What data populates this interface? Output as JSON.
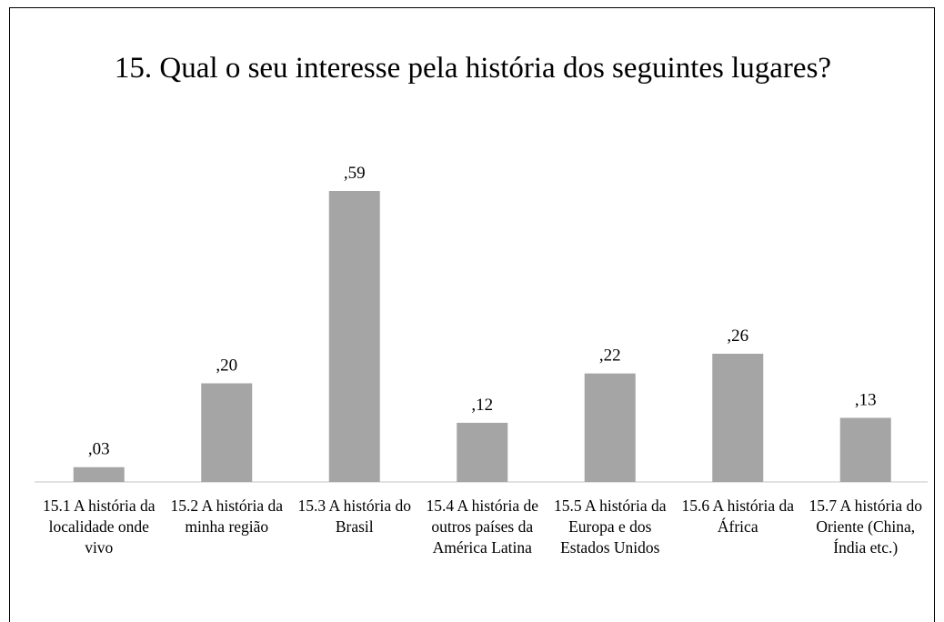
{
  "chart_data": {
    "type": "bar",
    "title": "15. Qual o seu interesse pela história dos seguintes lugares?",
    "categories": [
      "15.1 A história da localidade onde vivo",
      "15.2 A história da minha região",
      "15.3 A história do Brasil",
      "15.4 A história de outros países da América Latina",
      "15.5 A história da Europa e dos Estados Unidos",
      "15.6  A história da África",
      "15.7 A história do Oriente (China, Índia etc.)"
    ],
    "values": [
      0.03,
      0.2,
      0.59,
      0.12,
      0.22,
      0.26,
      0.13
    ],
    "value_labels": [
      ",03",
      ",20",
      ",59",
      ",12",
      ",22",
      ",26",
      ",13"
    ],
    "color": "#a5a5a5"
  }
}
